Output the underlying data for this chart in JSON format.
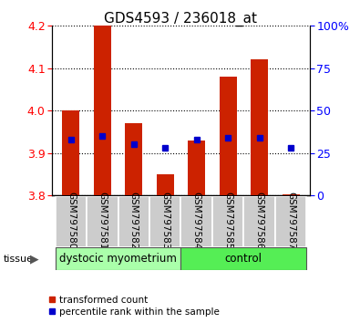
{
  "title": "GDS4593 / 236018_at",
  "samples": [
    "GSM797580",
    "GSM797581",
    "GSM797582",
    "GSM797583",
    "GSM797584",
    "GSM797585",
    "GSM797586",
    "GSM797587"
  ],
  "red_values": [
    4.0,
    4.2,
    3.97,
    3.85,
    3.93,
    4.08,
    4.12,
    3.802
  ],
  "blue_values_pct": [
    33,
    35,
    30,
    28,
    33,
    34,
    34,
    28
  ],
  "baseline": 3.8,
  "ylim_left": [
    3.8,
    4.2
  ],
  "ylim_right": [
    0,
    100
  ],
  "yticks_left": [
    3.8,
    3.9,
    4.0,
    4.1,
    4.2
  ],
  "yticks_right": [
    0,
    25,
    50,
    75,
    100
  ],
  "groups": [
    {
      "label": "dystocic myometrium",
      "indices": [
        0,
        1,
        2,
        3
      ],
      "color": "#aaffaa"
    },
    {
      "label": "control",
      "indices": [
        4,
        5,
        6,
        7
      ],
      "color": "#55ee55"
    }
  ],
  "tissue_label": "tissue",
  "bar_color": "#cc2200",
  "dot_color": "#0000cc",
  "legend_items": [
    {
      "color": "#cc2200",
      "label": "transformed count"
    },
    {
      "color": "#0000cc",
      "label": "percentile rank within the sample"
    }
  ],
  "title_fontsize": 11,
  "label_bg": "#cccccc",
  "right_ytick_labels": [
    "0",
    "25",
    "50",
    "75",
    "100%"
  ]
}
